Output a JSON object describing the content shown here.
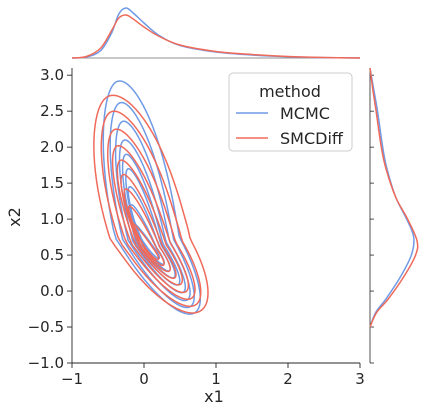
{
  "chart_data": {
    "type": "kde-joint",
    "xlabel": "x1",
    "ylabel": "x2",
    "xlim": [
      -1,
      3
    ],
    "ylim": [
      -1,
      3.1
    ],
    "xticks": [
      -1,
      0,
      1,
      2,
      3
    ],
    "yticks": [
      -1.0,
      -0.5,
      0.0,
      0.5,
      1.0,
      1.5,
      2.0,
      2.5,
      3.0
    ],
    "xtick_labels": [
      "−1",
      "0",
      "1",
      "2",
      "3"
    ],
    "ytick_labels": [
      "−1.0",
      "−0.5",
      "0.0",
      "0.5",
      "1.0",
      "1.5",
      "2.0",
      "2.5",
      "3.0"
    ],
    "grid": false,
    "legend": {
      "title": "method",
      "position": "top-right",
      "entries": [
        "MCMC",
        "SMCDiff"
      ]
    },
    "series": [
      {
        "name": "MCMC",
        "color": "#6F9AE6",
        "marginal_x": [
          [
            -1.0,
            0.0
          ],
          [
            -0.8,
            0.02
          ],
          [
            -0.6,
            0.15
          ],
          [
            -0.45,
            0.5
          ],
          [
            -0.35,
            0.88
          ],
          [
            -0.25,
            1.0
          ],
          [
            -0.15,
            0.9
          ],
          [
            0.0,
            0.7
          ],
          [
            0.2,
            0.46
          ],
          [
            0.5,
            0.25
          ],
          [
            1.0,
            0.12
          ],
          [
            1.5,
            0.06
          ],
          [
            2.0,
            0.025
          ],
          [
            2.5,
            0.008
          ],
          [
            3.0,
            0.0
          ]
        ],
        "marginal_y": [
          [
            -0.5,
            0.0
          ],
          [
            -0.3,
            0.12
          ],
          [
            -0.1,
            0.35
          ],
          [
            0.2,
            0.65
          ],
          [
            0.5,
            0.88
          ],
          [
            0.75,
            0.93
          ],
          [
            1.0,
            0.78
          ],
          [
            1.3,
            0.55
          ],
          [
            1.7,
            0.36
          ],
          [
            2.0,
            0.27
          ],
          [
            2.5,
            0.16
          ],
          [
            2.8,
            0.08
          ],
          [
            3.1,
            0.0
          ]
        ],
        "contours": [
          {
            "center": [
              0.05,
              0.75
            ],
            "angle": -58,
            "half_axes": [
              2.0,
              0.38
            ],
            "peak": [
              -0.33,
              2.92
            ]
          },
          {
            "center": [
              0.06,
              0.72
            ],
            "angle": -58,
            "half_axes": [
              1.78,
              0.3
            ],
            "peak": [
              -0.3,
              2.62
            ]
          },
          {
            "center": [
              0.07,
              0.7
            ],
            "angle": -57,
            "half_axes": [
              1.58,
              0.24
            ],
            "peak": [
              -0.29,
              2.36
            ]
          },
          {
            "center": [
              0.08,
              0.68
            ],
            "angle": -56,
            "half_axes": [
              1.35,
              0.19
            ],
            "peak": [
              -0.27,
              2.1
            ]
          },
          {
            "center": [
              0.08,
              0.66
            ],
            "angle": -55,
            "half_axes": [
              1.12,
              0.15
            ],
            "peak": [
              -0.25,
              1.9
            ]
          },
          {
            "center": [
              0.09,
              0.64
            ],
            "angle": -54,
            "half_axes": [
              0.9,
              0.12
            ],
            "peak": [
              -0.22,
              1.7
            ]
          },
          {
            "center": [
              0.1,
              0.62
            ],
            "angle": -53,
            "half_axes": [
              0.68,
              0.09
            ],
            "peak": [
              -0.2,
              1.45
            ]
          },
          {
            "center": [
              0.1,
              0.6
            ],
            "angle": -52,
            "half_axes": [
              0.46,
              0.06
            ],
            "peak": [
              -0.17,
              1.2
            ]
          },
          {
            "center": [
              0.11,
              0.58
            ],
            "angle": -51,
            "half_axes": [
              0.26,
              0.035
            ],
            "peak": [
              -0.15,
              0.95
            ]
          }
        ]
      },
      {
        "name": "SMCDiff",
        "color": "#F06A5A",
        "marginal_x": [
          [
            -1.0,
            0.0
          ],
          [
            -0.8,
            0.03
          ],
          [
            -0.6,
            0.2
          ],
          [
            -0.45,
            0.55
          ],
          [
            -0.35,
            0.8
          ],
          [
            -0.25,
            0.86
          ],
          [
            -0.15,
            0.78
          ],
          [
            0.0,
            0.62
          ],
          [
            0.2,
            0.44
          ],
          [
            0.5,
            0.26
          ],
          [
            1.0,
            0.13
          ],
          [
            1.5,
            0.07
          ],
          [
            2.0,
            0.03
          ],
          [
            2.5,
            0.01
          ],
          [
            3.0,
            0.0
          ]
        ],
        "marginal_y": [
          [
            -0.5,
            0.0
          ],
          [
            -0.3,
            0.14
          ],
          [
            -0.1,
            0.4
          ],
          [
            0.2,
            0.72
          ],
          [
            0.5,
            0.97
          ],
          [
            0.7,
            1.0
          ],
          [
            1.0,
            0.8
          ],
          [
            1.3,
            0.55
          ],
          [
            1.7,
            0.34
          ],
          [
            2.0,
            0.24
          ],
          [
            2.5,
            0.13
          ],
          [
            2.8,
            0.06
          ],
          [
            3.1,
            0.0
          ]
        ],
        "contours": [
          {
            "center": [
              0.1,
              0.72
            ],
            "angle": -55,
            "half_axes": [
              1.95,
              0.46
            ],
            "peak": [
              -0.45,
              2.72
            ]
          },
          {
            "center": [
              0.1,
              0.7
            ],
            "angle": -55,
            "half_axes": [
              1.75,
              0.36
            ],
            "peak": [
              -0.42,
              2.5
            ]
          },
          {
            "center": [
              0.1,
              0.68
            ],
            "angle": -54,
            "half_axes": [
              1.55,
              0.28
            ],
            "peak": [
              -0.38,
              2.25
            ]
          },
          {
            "center": [
              0.1,
              0.66
            ],
            "angle": -54,
            "half_axes": [
              1.33,
              0.22
            ],
            "peak": [
              -0.35,
              2.02
            ]
          },
          {
            "center": [
              0.1,
              0.64
            ],
            "angle": -53,
            "half_axes": [
              1.1,
              0.17
            ],
            "peak": [
              -0.31,
              1.82
            ]
          },
          {
            "center": [
              0.1,
              0.62
            ],
            "angle": -53,
            "half_axes": [
              0.88,
              0.13
            ],
            "peak": [
              -0.28,
              1.62
            ]
          },
          {
            "center": [
              0.1,
              0.6
            ],
            "angle": -52,
            "half_axes": [
              0.66,
              0.1
            ],
            "peak": [
              -0.25,
              1.42
            ]
          },
          {
            "center": [
              0.1,
              0.58
            ],
            "angle": -52,
            "half_axes": [
              0.45,
              0.065
            ],
            "peak": [
              -0.2,
              1.18
            ]
          },
          {
            "center": [
              0.1,
              0.56
            ],
            "angle": -51,
            "half_axes": [
              0.25,
              0.04
            ],
            "peak": [
              -0.17,
              0.95
            ]
          }
        ]
      }
    ]
  }
}
